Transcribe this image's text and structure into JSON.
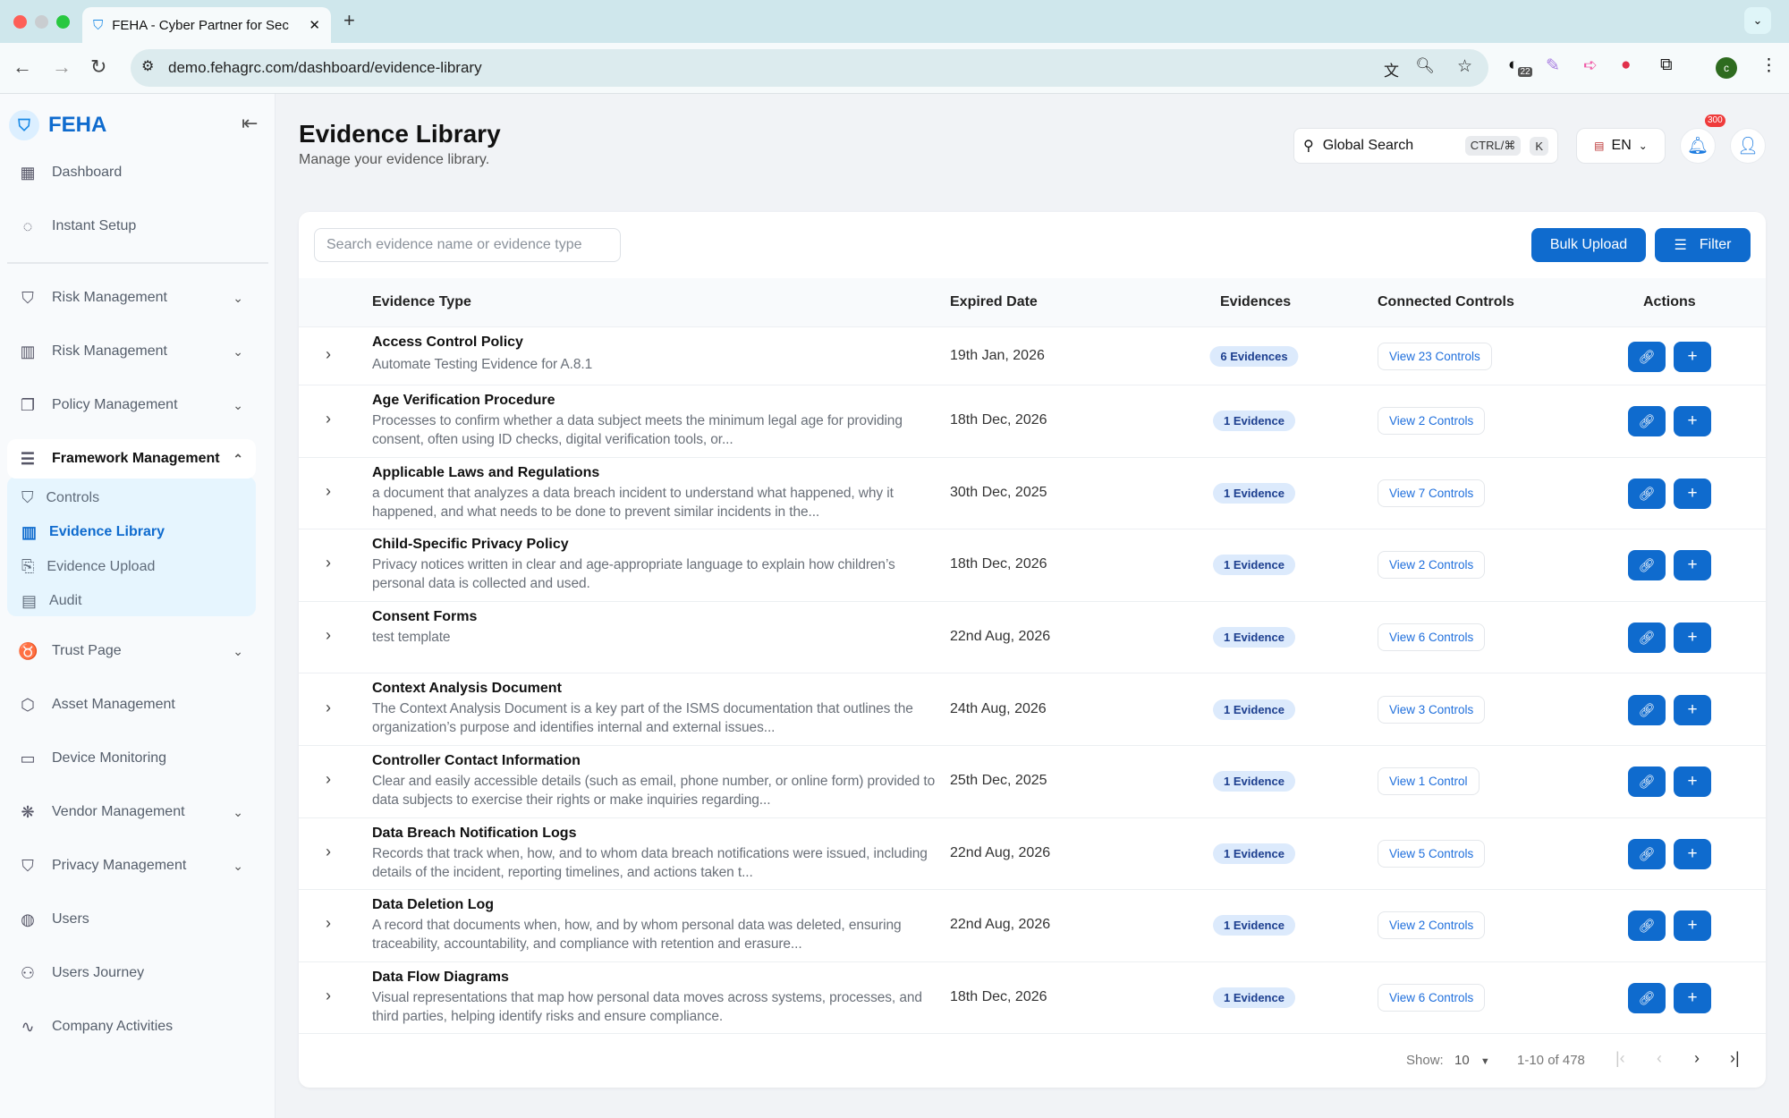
{
  "browser": {
    "tab_title": "FEHA - Cyber Partner for Sec",
    "url": "demo.fehagrc.com/dashboard/evidence-library",
    "extension_badge": "22",
    "profile_initial": "c"
  },
  "sidebar": {
    "brand": "FEHA",
    "items": [
      {
        "label": "Dashboard",
        "icon": "grid-icon"
      },
      {
        "label": "Instant Setup",
        "icon": "loader-icon"
      },
      {
        "label": "Risk Management",
        "icon": "shield-alert-icon",
        "expandable": true
      },
      {
        "label": "Risk Management",
        "icon": "building-icon",
        "expandable": true
      },
      {
        "label": "Policy Management",
        "icon": "copy-icon",
        "expandable": true
      },
      {
        "label": "Framework Management",
        "icon": "list-check-icon",
        "expandable": true,
        "open": true
      },
      {
        "label": "Trust Page",
        "icon": "award-icon",
        "expandable": true
      },
      {
        "label": "Asset Management",
        "icon": "box-icon"
      },
      {
        "label": "Device Monitoring",
        "icon": "devices-icon"
      },
      {
        "label": "Vendor Management",
        "icon": "network-icon",
        "expandable": true
      },
      {
        "label": "Privacy Management",
        "icon": "shield-check-icon",
        "expandable": true
      },
      {
        "label": "Users",
        "icon": "user-circle-icon"
      },
      {
        "label": "Users Journey",
        "icon": "users-icon"
      },
      {
        "label": "Company Activities",
        "icon": "activity-icon"
      }
    ],
    "subitems": [
      {
        "label": "Controls",
        "icon": "shield-check-icon"
      },
      {
        "label": "Evidence Library",
        "icon": "library-icon",
        "active": true
      },
      {
        "label": "Evidence Upload",
        "icon": "file-cog-icon"
      },
      {
        "label": "Audit",
        "icon": "file-text-icon"
      }
    ]
  },
  "header": {
    "title": "Evidence Library",
    "subtitle": "Manage your evidence library.",
    "global_search": "Global Search",
    "shortcut_mod": "CTRL/⌘",
    "shortcut_key": "K",
    "language": "EN",
    "notification_count": "300"
  },
  "toolbar": {
    "search_placeholder": "Search evidence name or evidence type",
    "bulk_upload": "Bulk Upload",
    "filter": "Filter"
  },
  "table": {
    "columns": [
      "Evidence Type",
      "Expired Date",
      "Evidences",
      "Connected Controls",
      "Actions"
    ],
    "rows": [
      {
        "name": "Access Control Policy",
        "desc": "Automate Testing Evidence for A.8.1",
        "date": "19th Jan, 2026",
        "evidences": "6 Evidences",
        "controls": "View 23 Controls"
      },
      {
        "name": "Age Verification Procedure",
        "desc": "Processes to confirm whether a data subject meets the minimum legal age for providing consent, often using ID checks, digital verification tools, or...",
        "date": "18th Dec, 2026",
        "evidences": "1 Evidence",
        "controls": "View 2 Controls"
      },
      {
        "name": "Applicable Laws and Regulations",
        "desc": "a document that analyzes a data breach incident to understand what happened, why it happened, and what needs to be done to prevent similar incidents in the...",
        "date": "30th Dec, 2025",
        "evidences": "1 Evidence",
        "controls": "View 7 Controls"
      },
      {
        "name": "Child-Specific Privacy Policy",
        "desc": "Privacy notices written in clear and age-appropriate language to explain how children’s personal data is collected and used.",
        "date": "18th Dec, 2026",
        "evidences": "1 Evidence",
        "controls": "View 2 Controls"
      },
      {
        "name": "Consent Forms",
        "desc": "test template",
        "date": "22nd Aug, 2026",
        "evidences": "1 Evidence",
        "controls": "View 6 Controls"
      },
      {
        "name": "Context Analysis Document",
        "desc": "The Context Analysis Document is a key part of the ISMS documentation that outlines the organization’s purpose and identifies internal and external issues...",
        "date": "24th Aug, 2026",
        "evidences": "1 Evidence",
        "controls": "View 3 Controls"
      },
      {
        "name": "Controller Contact Information",
        "desc": "Clear and easily accessible details (such as email, phone number, or online form) provided to data subjects to exercise their rights or make inquiries regarding...",
        "date": "25th Dec, 2025",
        "evidences": "1 Evidence",
        "controls": "View 1 Control"
      },
      {
        "name": "Data Breach Notification Logs",
        "desc": "Records that track when, how, and to whom data breach notifications were issued, including details of the incident, reporting timelines, and actions taken t...",
        "date": "22nd Aug, 2026",
        "evidences": "1 Evidence",
        "controls": "View 5 Controls"
      },
      {
        "name": "Data Deletion Log",
        "desc": "A record that documents when, how, and by whom personal data was deleted, ensuring traceability, accountability, and compliance with retention and erasure...",
        "date": "22nd Aug, 2026",
        "evidences": "1 Evidence",
        "controls": "View 2 Controls"
      },
      {
        "name": "Data Flow Diagrams",
        "desc": "Visual representations that map how personal data moves across systems, processes, and third parties, helping identify risks and ensure compliance.",
        "date": "18th Dec, 2026",
        "evidences": "1 Evidence",
        "controls": "View 6 Controls"
      }
    ]
  },
  "pagination": {
    "show_label": "Show:",
    "page_size": "10",
    "range": "1-10 of 478"
  },
  "colors": {
    "accent": "#0f6bce",
    "badge_bg": "#dceafc",
    "notification": "#ef3b3b"
  }
}
